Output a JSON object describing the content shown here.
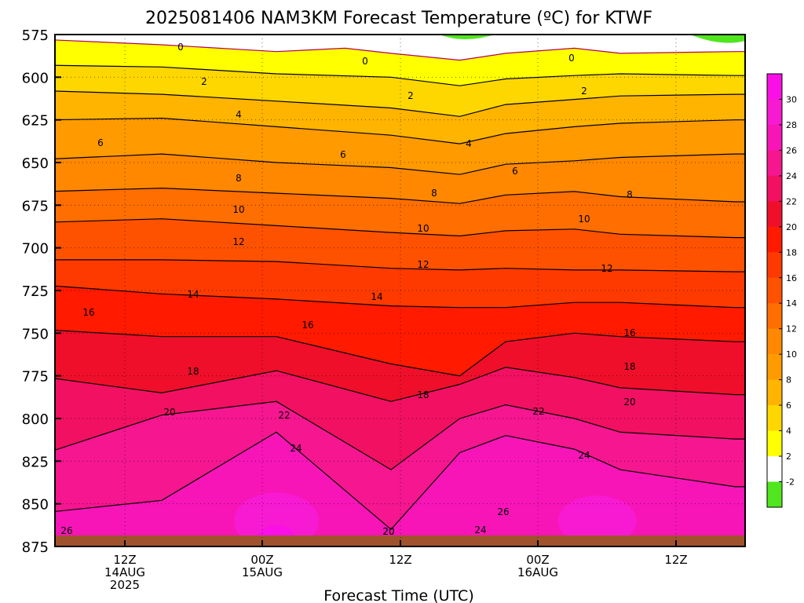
{
  "chart_data": {
    "type": "heatmap",
    "title": "2025081406 NAM3KM Forecast Temperature (ºC) for KTWF",
    "xlabel": "Forecast Time (UTC)",
    "ylabel": "",
    "y_scale": "pressure (inverted, increasing downward)",
    "ylim": [
      875,
      575
    ],
    "y_ticks": [
      "575",
      "600",
      "625",
      "650",
      "675",
      "700",
      "725",
      "750",
      "775",
      "800",
      "825",
      "850",
      "875"
    ],
    "x_ticks": [
      {
        "lines": [
          "12Z",
          "14AUG",
          "2025"
        ]
      },
      {
        "lines": [
          "00Z",
          "15AUG"
        ]
      },
      {
        "lines": [
          "12Z"
        ]
      },
      {
        "lines": [
          "00Z",
          "16AUG"
        ]
      },
      {
        "lines": [
          "12Z"
        ]
      }
    ],
    "grid": true,
    "legend": "right",
    "colorbar": {
      "labels": [
        "-2",
        "2",
        "4",
        "6",
        "8",
        "10",
        "12",
        "14",
        "16",
        "18",
        "20",
        "22",
        "24",
        "26",
        "28",
        "30"
      ],
      "colors": [
        "#50e61e",
        "#ffffff",
        "#ffff00",
        "#ffd700",
        "#ffb400",
        "#ff9a00",
        "#ff8800",
        "#ff6e00",
        "#ff5200",
        "#ff3a00",
        "#ff1a00",
        "#ef0f2a",
        "#f21062",
        "#f51690",
        "#f715b8",
        "#f81ad2",
        "#fa10e6"
      ]
    },
    "contour_labels": [
      "0",
      "0",
      "0",
      "2",
      "2",
      "2",
      "4",
      "4",
      "6",
      "6",
      "6",
      "8",
      "8",
      "8",
      "10",
      "10",
      "10",
      "12",
      "12",
      "12",
      "14",
      "14",
      "16",
      "16",
      "16",
      "18",
      "18",
      "18",
      "20",
      "20",
      "20",
      "22",
      "22",
      "24",
      "24",
      "26",
      "26",
      "24",
      "20"
    ],
    "series": [
      {
        "name": "0",
        "points": [
          [
            0,
            578
          ],
          [
            1,
            581
          ],
          [
            2,
            585
          ],
          [
            2.6,
            583
          ],
          [
            3,
            586
          ],
          [
            3.6,
            590
          ],
          [
            4,
            586
          ],
          [
            4.6,
            583
          ],
          [
            5,
            586
          ],
          [
            6,
            585
          ]
        ]
      },
      {
        "name": "2",
        "points": [
          [
            0,
            593
          ],
          [
            1,
            594
          ],
          [
            2,
            598
          ],
          [
            3,
            600
          ],
          [
            3.6,
            605
          ],
          [
            4,
            601
          ],
          [
            4.6,
            599
          ],
          [
            5,
            598
          ],
          [
            6,
            599
          ]
        ]
      },
      {
        "name": "4",
        "points": [
          [
            0,
            608
          ],
          [
            1,
            610
          ],
          [
            2,
            614
          ],
          [
            3,
            618
          ],
          [
            3.6,
            623
          ],
          [
            4,
            616
          ],
          [
            4.6,
            613
          ],
          [
            5,
            611
          ],
          [
            6,
            610
          ]
        ]
      },
      {
        "name": "6",
        "points": [
          [
            0,
            625
          ],
          [
            1,
            624
          ],
          [
            2,
            629
          ],
          [
            3,
            634
          ],
          [
            3.6,
            639
          ],
          [
            4,
            633
          ],
          [
            4.6,
            629
          ],
          [
            5,
            627
          ],
          [
            6,
            625
          ]
        ]
      },
      {
        "name": "8",
        "points": [
          [
            0,
            648
          ],
          [
            1,
            645
          ],
          [
            2,
            650
          ],
          [
            3,
            653
          ],
          [
            3.6,
            657
          ],
          [
            4,
            651
          ],
          [
            4.6,
            649
          ],
          [
            5,
            647
          ],
          [
            6,
            645
          ]
        ]
      },
      {
        "name": "10",
        "points": [
          [
            0,
            667
          ],
          [
            1,
            665
          ],
          [
            2,
            668
          ],
          [
            3,
            671
          ],
          [
            3.6,
            674
          ],
          [
            4,
            669
          ],
          [
            4.6,
            667
          ],
          [
            5,
            670
          ],
          [
            6,
            673
          ]
        ]
      },
      {
        "name": "12",
        "points": [
          [
            0,
            685
          ],
          [
            1,
            683
          ],
          [
            2,
            687
          ],
          [
            3,
            691
          ],
          [
            3.6,
            693
          ],
          [
            4,
            690
          ],
          [
            4.6,
            689
          ],
          [
            5,
            692
          ],
          [
            6,
            694
          ]
        ]
      },
      {
        "name": "14",
        "points": [
          [
            0,
            707
          ],
          [
            1,
            707
          ],
          [
            2,
            708
          ],
          [
            3,
            712
          ],
          [
            3.6,
            713
          ],
          [
            4,
            712
          ],
          [
            4.6,
            713
          ],
          [
            5,
            713
          ],
          [
            6,
            714
          ]
        ]
      },
      {
        "name": "16",
        "points": [
          [
            0,
            722
          ],
          [
            1,
            727
          ],
          [
            2,
            730
          ],
          [
            3,
            734
          ],
          [
            3.6,
            735
          ],
          [
            4,
            735
          ],
          [
            4.6,
            732
          ],
          [
            5,
            732
          ],
          [
            6,
            735
          ]
        ]
      },
      {
        "name": "18",
        "points": [
          [
            0,
            748
          ],
          [
            1,
            752
          ],
          [
            2,
            752
          ],
          [
            3,
            768
          ],
          [
            3.6,
            775
          ],
          [
            4,
            755
          ],
          [
            4.6,
            750
          ],
          [
            5,
            752
          ],
          [
            6,
            755
          ]
        ]
      },
      {
        "name": "20",
        "points": [
          [
            0,
            776
          ],
          [
            1,
            785
          ],
          [
            2,
            772
          ],
          [
            3,
            790
          ],
          [
            3.6,
            780
          ],
          [
            4,
            770
          ],
          [
            4.6,
            776
          ],
          [
            5,
            782
          ],
          [
            6,
            786
          ]
        ]
      },
      {
        "name": "22",
        "points": [
          [
            0,
            820
          ],
          [
            1,
            798
          ],
          [
            2,
            790
          ],
          [
            3,
            830
          ],
          [
            3.6,
            800
          ],
          [
            4,
            792
          ],
          [
            4.6,
            800
          ],
          [
            5,
            808
          ],
          [
            6,
            812
          ]
        ]
      },
      {
        "name": "24",
        "points": [
          [
            0,
            855
          ],
          [
            1,
            848
          ],
          [
            2,
            808
          ],
          [
            3,
            865
          ],
          [
            3.6,
            820
          ],
          [
            4,
            810
          ],
          [
            4.6,
            818
          ],
          [
            5,
            830
          ],
          [
            6,
            840
          ]
        ]
      }
    ]
  }
}
